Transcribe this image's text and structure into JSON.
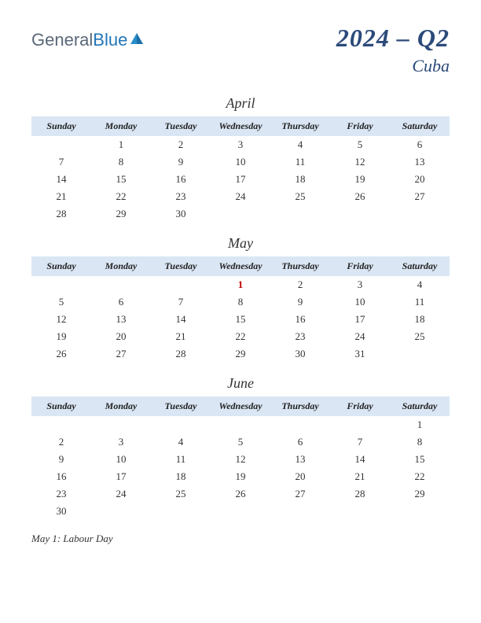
{
  "logo": {
    "part1": "General",
    "part2": "Blue"
  },
  "title": {
    "year_quarter": "2024 – Q2",
    "country": "Cuba"
  },
  "colors": {
    "header_bg": "#dae6f4",
    "title_color": "#2c4a7a",
    "holiday_color": "#c00000",
    "logo_gray": "#5a6878",
    "logo_blue": "#2176b8"
  },
  "day_headers": [
    "Sunday",
    "Monday",
    "Tuesday",
    "Wednesday",
    "Thursday",
    "Friday",
    "Saturday"
  ],
  "months": [
    {
      "name": "April",
      "weeks": [
        [
          "",
          "1",
          "2",
          "3",
          "4",
          "5",
          "6"
        ],
        [
          "7",
          "8",
          "9",
          "10",
          "11",
          "12",
          "13"
        ],
        [
          "14",
          "15",
          "16",
          "17",
          "18",
          "19",
          "20"
        ],
        [
          "21",
          "22",
          "23",
          "24",
          "25",
          "26",
          "27"
        ],
        [
          "28",
          "29",
          "30",
          "",
          "",
          "",
          ""
        ]
      ],
      "holidays": []
    },
    {
      "name": "May",
      "weeks": [
        [
          "",
          "",
          "",
          "1",
          "2",
          "3",
          "4"
        ],
        [
          "5",
          "6",
          "7",
          "8",
          "9",
          "10",
          "11"
        ],
        [
          "12",
          "13",
          "14",
          "15",
          "16",
          "17",
          "18"
        ],
        [
          "19",
          "20",
          "21",
          "22",
          "23",
          "24",
          "25"
        ],
        [
          "26",
          "27",
          "28",
          "29",
          "30",
          "31",
          ""
        ]
      ],
      "holidays": [
        "1"
      ]
    },
    {
      "name": "June",
      "weeks": [
        [
          "",
          "",
          "",
          "",
          "",
          "",
          "1"
        ],
        [
          "2",
          "3",
          "4",
          "5",
          "6",
          "7",
          "8"
        ],
        [
          "9",
          "10",
          "11",
          "12",
          "13",
          "14",
          "15"
        ],
        [
          "16",
          "17",
          "18",
          "19",
          "20",
          "21",
          "22"
        ],
        [
          "23",
          "24",
          "25",
          "26",
          "27",
          "28",
          "29"
        ],
        [
          "30",
          "",
          "",
          "",
          "",
          "",
          ""
        ]
      ],
      "holidays": []
    }
  ],
  "notes": [
    "May 1: Labour Day"
  ]
}
